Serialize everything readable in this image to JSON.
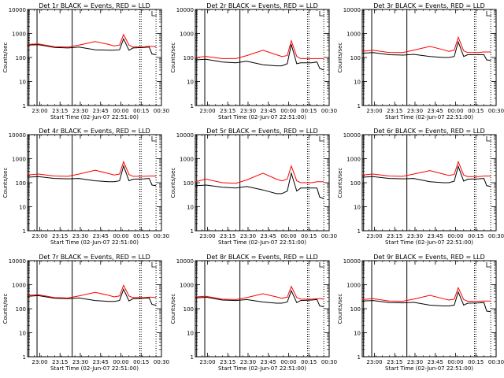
{
  "figure": {
    "ylabel": "Counts/sec",
    "xlabel": "Start Time (02-Jun-07 22:51:00)",
    "x_tick_labels": [
      "23:00",
      "23:15",
      "23:30",
      "23:45",
      "00:00",
      "00:15",
      "00:30"
    ],
    "y_tick_labels": [
      "1",
      "10",
      "100",
      "1000",
      "10000"
    ],
    "colors": {
      "events": "#000000",
      "lld": "#ff0000",
      "background": "#ffffff",
      "axes": "#000000"
    }
  },
  "chart_data": [
    {
      "type": "line",
      "title": "Det 1r BLACK = Events, RED = LLD",
      "xlabel": "Start Time (02-Jun-07 22:51:00)",
      "ylabel": "Counts/sec",
      "x_unit": "minutes after 22:51:00",
      "xlim": [
        0,
        99
      ],
      "ylim": [
        1,
        10000
      ],
      "yscale": "log",
      "grid": false,
      "legend": "none",
      "series": [
        {
          "color": "#000000",
          "x": [
            0,
            8,
            20,
            30,
            38,
            50,
            60,
            64,
            68,
            71,
            75,
            78,
            86,
            90,
            92,
            95
          ],
          "values": [
            330,
            340,
            260,
            250,
            270,
            210,
            200,
            200,
            210,
            600,
            200,
            250,
            260,
            270,
            140,
            130
          ]
        },
        {
          "color": "#ff0000",
          "x": [
            0,
            8,
            20,
            30,
            38,
            50,
            60,
            64,
            68,
            71,
            75,
            78,
            86,
            90,
            92,
            95
          ],
          "values": [
            350,
            370,
            280,
            270,
            330,
            460,
            350,
            300,
            330,
            900,
            330,
            270,
            280,
            290,
            290,
            280
          ]
        }
      ]
    },
    {
      "type": "line",
      "title": "Det 2r BLACK = Events, RED = LLD",
      "xlabel": "Start Time (02-Jun-07 22:51:00)",
      "ylabel": "Counts/sec",
      "x_unit": "minutes after 22:51:00",
      "xlim": [
        0,
        99
      ],
      "ylim": [
        1,
        10000
      ],
      "yscale": "log",
      "grid": false,
      "legend": "none",
      "series": [
        {
          "color": "#000000",
          "x": [
            0,
            8,
            20,
            30,
            38,
            50,
            60,
            64,
            68,
            71,
            75,
            78,
            86,
            90,
            92,
            95
          ],
          "values": [
            80,
            85,
            65,
            60,
            70,
            50,
            45,
            45,
            55,
            350,
            55,
            60,
            60,
            65,
            35,
            30
          ]
        },
        {
          "color": "#ff0000",
          "x": [
            0,
            8,
            20,
            30,
            38,
            50,
            60,
            64,
            68,
            71,
            75,
            78,
            86,
            90,
            92,
            95
          ],
          "values": [
            100,
            110,
            90,
            90,
            120,
            200,
            130,
            110,
            120,
            500,
            110,
            90,
            90,
            90,
            90,
            90
          ]
        }
      ]
    },
    {
      "type": "line",
      "title": "Det 3r BLACK = Events, RED = LLD",
      "xlabel": "Start Time (02-Jun-07 22:51:00)",
      "ylabel": "Counts/sec",
      "x_unit": "minutes after 22:51:00",
      "xlim": [
        0,
        99
      ],
      "ylim": [
        1,
        10000
      ],
      "yscale": "log",
      "grid": false,
      "legend": "none",
      "series": [
        {
          "color": "#000000",
          "x": [
            0,
            8,
            20,
            30,
            38,
            50,
            60,
            64,
            68,
            71,
            75,
            78,
            86,
            90,
            92,
            95
          ],
          "values": [
            150,
            160,
            130,
            125,
            135,
            110,
            100,
            100,
            110,
            450,
            110,
            130,
            130,
            130,
            80,
            75
          ]
        },
        {
          "color": "#ff0000",
          "x": [
            0,
            8,
            20,
            30,
            38,
            50,
            60,
            64,
            68,
            71,
            75,
            78,
            86,
            90,
            92,
            95
          ],
          "values": [
            180,
            200,
            160,
            160,
            200,
            290,
            210,
            180,
            200,
            700,
            190,
            160,
            160,
            170,
            170,
            170
          ]
        }
      ]
    },
    {
      "type": "line",
      "title": "Det 4r BLACK = Events, RED = LLD",
      "xlabel": "Start Time (02-Jun-07 22:51:00)",
      "ylabel": "Counts/sec",
      "x_unit": "minutes after 22:51:00",
      "xlim": [
        0,
        99
      ],
      "ylim": [
        1,
        10000
      ],
      "yscale": "log",
      "grid": false,
      "legend": "none",
      "series": [
        {
          "color": "#000000",
          "x": [
            0,
            8,
            20,
            30,
            38,
            50,
            60,
            64,
            68,
            71,
            75,
            78,
            86,
            90,
            92,
            95
          ],
          "values": [
            170,
            180,
            150,
            145,
            150,
            120,
            110,
            110,
            120,
            500,
            120,
            140,
            145,
            150,
            80,
            75
          ]
        },
        {
          "color": "#ff0000",
          "x": [
            0,
            8,
            20,
            30,
            38,
            50,
            60,
            64,
            68,
            71,
            75,
            78,
            86,
            90,
            92,
            95
          ],
          "values": [
            210,
            230,
            190,
            185,
            230,
            330,
            240,
            210,
            230,
            750,
            220,
            185,
            185,
            190,
            190,
            190
          ]
        }
      ]
    },
    {
      "type": "line",
      "title": "Det 5r BLACK = Events, RED = LLD",
      "xlabel": "Start Time (02-Jun-07 22:51:00)",
      "ylabel": "Counts/sec",
      "x_unit": "minutes after 22:51:00",
      "xlim": [
        0,
        99
      ],
      "ylim": [
        1,
        10000
      ],
      "yscale": "log",
      "grid": false,
      "legend": "none",
      "series": [
        {
          "color": "#000000",
          "x": [
            0,
            8,
            20,
            30,
            38,
            50,
            60,
            64,
            68,
            71,
            75,
            78,
            86,
            90,
            92,
            95
          ],
          "values": [
            75,
            80,
            65,
            60,
            70,
            50,
            35,
            35,
            45,
            250,
            45,
            60,
            60,
            60,
            25,
            22
          ]
        },
        {
          "color": "#ff0000",
          "x": [
            0,
            8,
            20,
            30,
            38,
            50,
            60,
            64,
            68,
            71,
            75,
            78,
            86,
            90,
            92,
            95
          ],
          "values": [
            110,
            140,
            100,
            95,
            130,
            250,
            140,
            120,
            140,
            500,
            120,
            100,
            100,
            110,
            110,
            110
          ]
        }
      ]
    },
    {
      "type": "line",
      "title": "Det 6r BLACK = Events, RED = LLD",
      "xlabel": "Start Time (02-Jun-07 22:51:00)",
      "ylabel": "Counts/sec",
      "x_unit": "minutes after 22:51:00",
      "xlim": [
        0,
        99
      ],
      "ylim": [
        1,
        10000
      ],
      "yscale": "log",
      "grid": false,
      "legend": "none",
      "series": [
        {
          "color": "#000000",
          "x": [
            0,
            8,
            20,
            30,
            38,
            50,
            60,
            64,
            68,
            71,
            75,
            78,
            86,
            90,
            92,
            95
          ],
          "values": [
            170,
            180,
            150,
            145,
            150,
            110,
            100,
            100,
            115,
            480,
            115,
            140,
            145,
            150,
            75,
            70
          ]
        },
        {
          "color": "#ff0000",
          "x": [
            0,
            8,
            20,
            30,
            38,
            50,
            60,
            64,
            68,
            71,
            75,
            78,
            86,
            90,
            92,
            95
          ],
          "values": [
            210,
            230,
            190,
            185,
            230,
            320,
            230,
            200,
            220,
            750,
            210,
            180,
            180,
            190,
            190,
            190
          ]
        }
      ]
    },
    {
      "type": "line",
      "title": "Det 7r BLACK = Events, RED = LLD",
      "xlabel": "Start Time (02-Jun-07 22:51:00)",
      "ylabel": "Counts/sec",
      "x_unit": "minutes after 22:51:00",
      "xlim": [
        0,
        99
      ],
      "ylim": [
        1,
        10000
      ],
      "yscale": "log",
      "grid": false,
      "legend": "none",
      "series": [
        {
          "color": "#000000",
          "x": [
            0,
            8,
            20,
            30,
            38,
            50,
            60,
            64,
            68,
            71,
            75,
            78,
            86,
            90,
            92,
            95
          ],
          "values": [
            330,
            350,
            270,
            260,
            280,
            220,
            200,
            200,
            220,
            650,
            210,
            260,
            270,
            280,
            150,
            140
          ]
        },
        {
          "color": "#ff0000",
          "x": [
            0,
            8,
            20,
            30,
            38,
            50,
            60,
            64,
            68,
            71,
            75,
            78,
            86,
            90,
            92,
            95
          ],
          "values": [
            360,
            380,
            290,
            280,
            340,
            480,
            360,
            310,
            340,
            950,
            340,
            290,
            290,
            300,
            300,
            290
          ]
        }
      ]
    },
    {
      "type": "line",
      "title": "Det 8r BLACK = Events, RED = LLD",
      "xlabel": "Start Time (02-Jun-07 22:51:00)",
      "ylabel": "Counts/sec",
      "x_unit": "minutes after 22:51:00",
      "xlim": [
        0,
        99
      ],
      "ylim": [
        1,
        10000
      ],
      "yscale": "log",
      "grid": false,
      "legend": "none",
      "series": [
        {
          "color": "#000000",
          "x": [
            0,
            8,
            20,
            30,
            38,
            50,
            60,
            64,
            68,
            71,
            75,
            78,
            86,
            90,
            92,
            95
          ],
          "values": [
            280,
            300,
            230,
            220,
            240,
            190,
            170,
            170,
            190,
            560,
            180,
            220,
            230,
            240,
            130,
            120
          ]
        },
        {
          "color": "#ff0000",
          "x": [
            0,
            8,
            20,
            30,
            38,
            50,
            60,
            64,
            68,
            71,
            75,
            78,
            86,
            90,
            92,
            95
          ],
          "values": [
            310,
            330,
            250,
            240,
            290,
            420,
            310,
            270,
            300,
            850,
            290,
            250,
            250,
            260,
            260,
            250
          ]
        }
      ]
    },
    {
      "type": "line",
      "title": "Det 9r BLACK = Events, RED = LLD",
      "xlabel": "Start Time (02-Jun-07 22:51:00)",
      "ylabel": "Counts/sec",
      "x_unit": "minutes after 22:51:00",
      "xlim": [
        0,
        99
      ],
      "ylim": [
        1,
        10000
      ],
      "yscale": "log",
      "grid": false,
      "legend": "none",
      "series": [
        {
          "color": "#000000",
          "x": [
            0,
            8,
            20,
            30,
            38,
            50,
            60,
            64,
            68,
            71,
            75,
            78,
            86,
            90,
            92,
            95
          ],
          "values": [
            210,
            220,
            180,
            175,
            185,
            140,
            130,
            130,
            140,
            500,
            140,
            170,
            175,
            180,
            80,
            75
          ]
        },
        {
          "color": "#ff0000",
          "x": [
            0,
            8,
            20,
            30,
            38,
            50,
            60,
            64,
            68,
            71,
            75,
            78,
            86,
            90,
            92,
            95
          ],
          "values": [
            240,
            260,
            210,
            205,
            250,
            360,
            260,
            230,
            250,
            750,
            240,
            205,
            205,
            210,
            210,
            210
          ]
        }
      ]
    }
  ]
}
